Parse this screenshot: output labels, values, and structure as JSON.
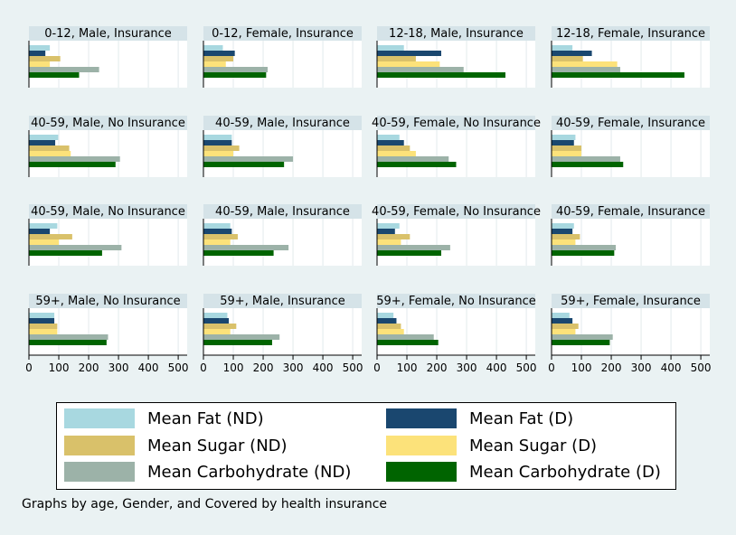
{
  "note": "Graphs by age, Gender, and Covered by health insurance",
  "colors": {
    "fat_nd": "#a8d8e0",
    "fat_d": "#1a476f",
    "sugar_nd": "#d9c16a",
    "sugar_d": "#fce27a",
    "carb_nd": "#9cb2a8",
    "carb_d": "#006400"
  },
  "legend": [
    {
      "key": "fat_nd",
      "label": "Mean Fat (ND)"
    },
    {
      "key": "fat_d",
      "label": "Mean Fat (D)"
    },
    {
      "key": "sugar_nd",
      "label": "Mean Sugar (ND)"
    },
    {
      "key": "sugar_d",
      "label": "Mean Sugar (D)"
    },
    {
      "key": "carb_nd",
      "label": "Mean Carbohydrate (ND)"
    },
    {
      "key": "carb_d",
      "label": "Mean Carbohydrate (D)"
    }
  ],
  "chart_data": {
    "type": "bar",
    "orientation": "horizontal",
    "xlim": [
      0,
      530
    ],
    "xticks": [
      0,
      100,
      200,
      300,
      400,
      500
    ],
    "grid": true,
    "legend_position": "bottom",
    "series": [
      "fat_nd",
      "fat_d",
      "sugar_nd",
      "sugar_d",
      "carb_nd",
      "carb_d"
    ],
    "panels": [
      {
        "title": "0-12, Male, Insurance",
        "values": [
          70,
          55,
          105,
          70,
          235,
          168
        ]
      },
      {
        "title": "0-12, Female, Insurance",
        "values": [
          65,
          105,
          100,
          75,
          215,
          210
        ]
      },
      {
        "title": "12-18, Male, Insurance",
        "values": [
          90,
          215,
          130,
          210,
          290,
          430
        ]
      },
      {
        "title": "12-18, Female, Insurance",
        "values": [
          70,
          135,
          105,
          220,
          230,
          445
        ]
      },
      {
        "title": "40-59, Male, No Insurance",
        "values": [
          98,
          88,
          135,
          140,
          305,
          290
        ]
      },
      {
        "title": "40-59, Male, Insurance",
        "values": [
          95,
          95,
          120,
          100,
          300,
          270
        ]
      },
      {
        "title": "40-59, Female, No Insurance",
        "values": [
          75,
          90,
          110,
          130,
          240,
          265
        ]
      },
      {
        "title": "40-59, Female, Insurance",
        "values": [
          80,
          75,
          100,
          100,
          230,
          240
        ]
      },
      {
        "title": "40-59, Male, No Insurance",
        "values": [
          95,
          70,
          145,
          100,
          310,
          245
        ]
      },
      {
        "title": "40-59, Male, Insurance",
        "values": [
          90,
          95,
          115,
          90,
          285,
          235
        ]
      },
      {
        "title": "40-59, Female, No Insurance",
        "values": [
          75,
          60,
          110,
          80,
          245,
          215
        ]
      },
      {
        "title": "40-59, Female, Insurance",
        "values": [
          75,
          70,
          95,
          80,
          215,
          210
        ]
      },
      {
        "title": "59+, Male, No Insurance",
        "values": [
          85,
          85,
          95,
          95,
          265,
          260
        ]
      },
      {
        "title": "59+, Male, Insurance",
        "values": [
          80,
          85,
          110,
          90,
          255,
          230
        ]
      },
      {
        "title": "59+, Female, No Insurance",
        "values": [
          55,
          65,
          80,
          90,
          190,
          205
        ]
      },
      {
        "title": "59+, Female, Insurance",
        "values": [
          60,
          70,
          90,
          80,
          205,
          195
        ]
      }
    ]
  }
}
